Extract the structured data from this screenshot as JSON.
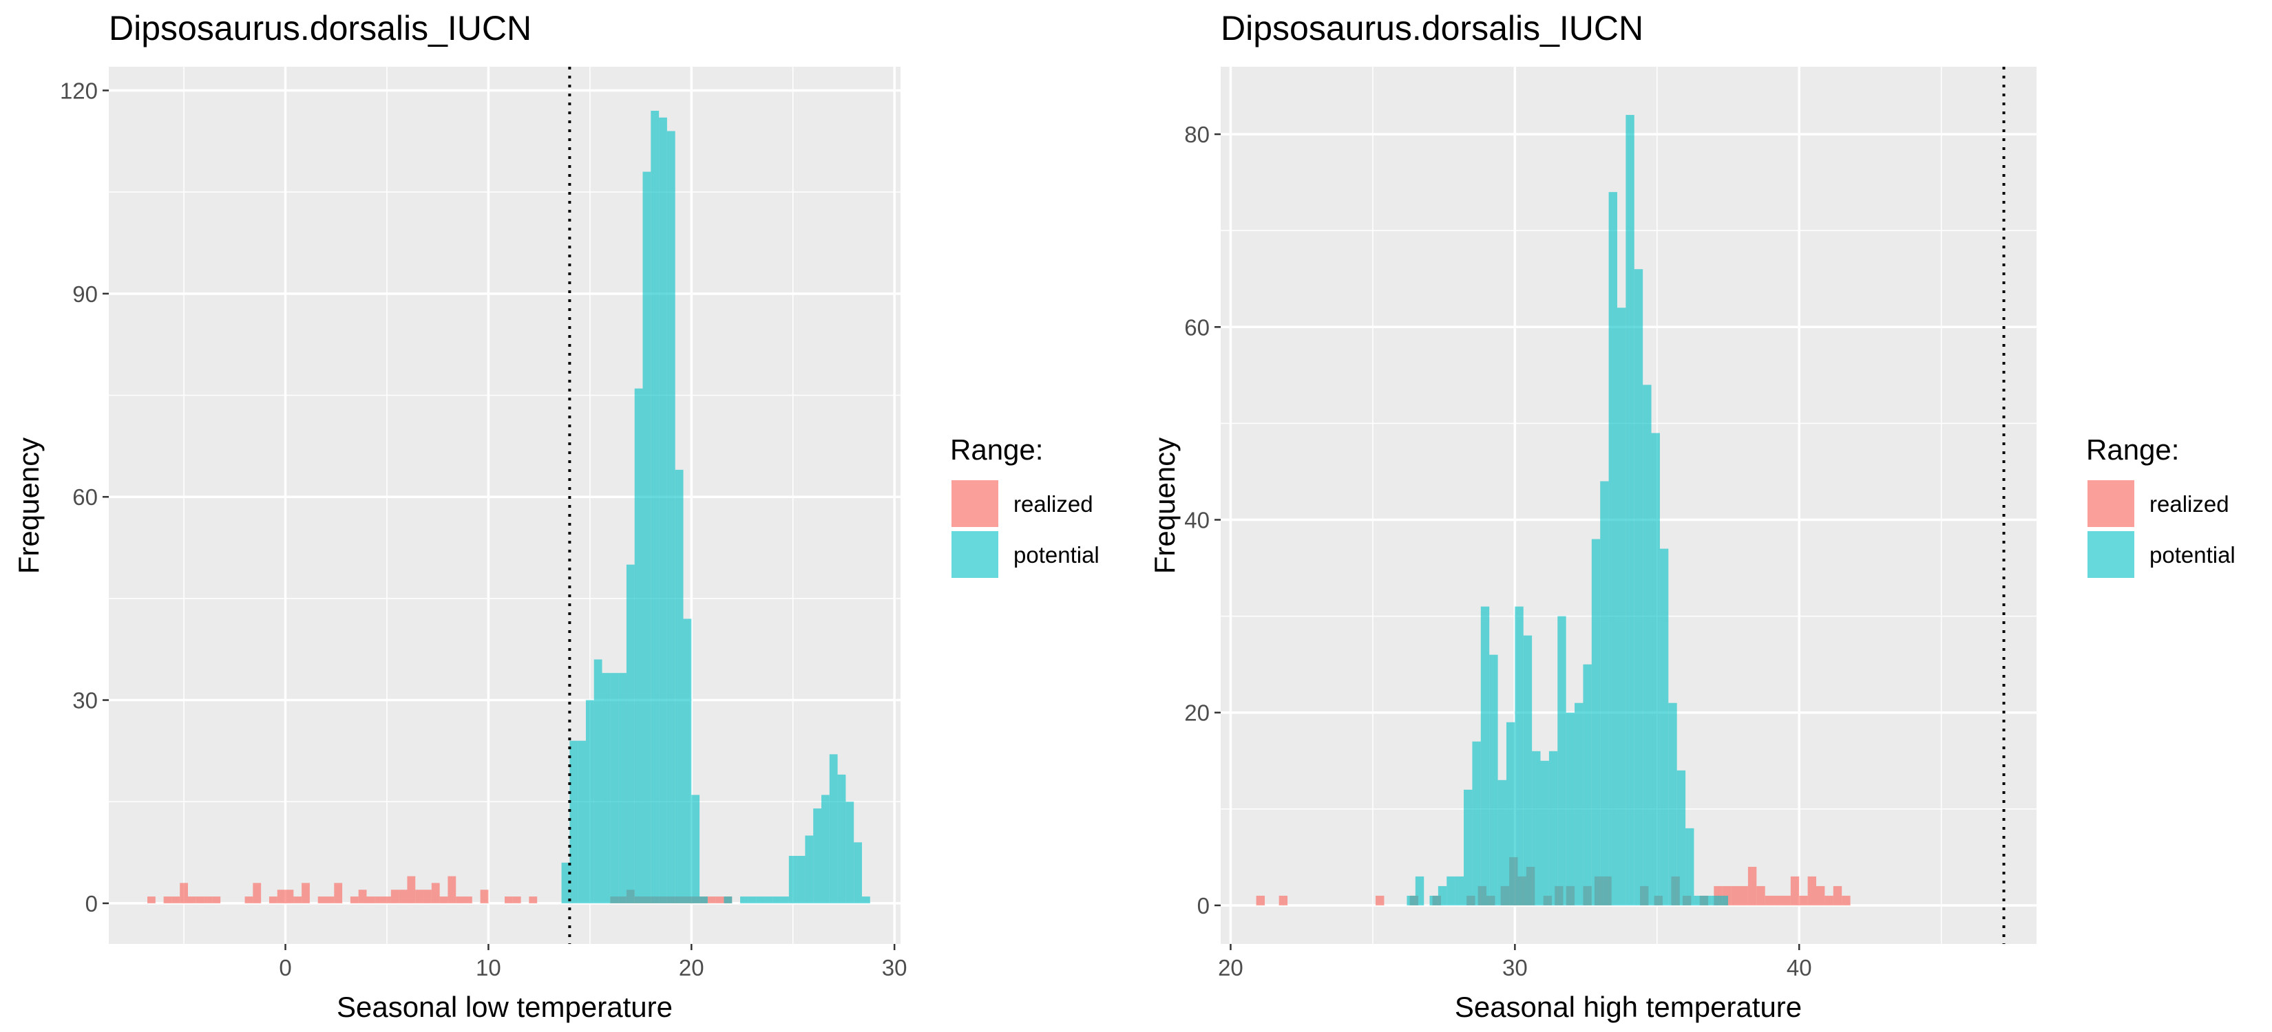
{
  "chart_data": [
    {
      "type": "bar",
      "title": "Dipsosaurus.dorsalis_IUCN",
      "xlabel": "Seasonal low temperature",
      "ylabel": "Frequency",
      "xlim": [
        -8.7,
        30.3
      ],
      "ylim": [
        -6,
        123.5
      ],
      "xticks": [
        0,
        10,
        20,
        30
      ],
      "yticks": [
        0,
        30,
        60,
        90,
        120
      ],
      "threshold": 14,
      "grid": true,
      "legend": {
        "title": "Range:",
        "placement": "right",
        "entries": [
          {
            "label": "realized",
            "color": "#F8766D"
          },
          {
            "label": "potential",
            "color": "#00BFC4"
          }
        ]
      },
      "series": [
        {
          "name": "realized",
          "color": "#F8766D",
          "bin_width": 0.4,
          "bins": [
            [
              -6.6,
              1
            ],
            [
              -5.8,
              1
            ],
            [
              -5.4,
              1
            ],
            [
              -5.0,
              3
            ],
            [
              -4.6,
              1
            ],
            [
              -4.2,
              1
            ],
            [
              -3.8,
              1
            ],
            [
              -3.4,
              1
            ],
            [
              -1.8,
              1
            ],
            [
              -1.4,
              3
            ],
            [
              -0.6,
              1
            ],
            [
              -0.2,
              2
            ],
            [
              0.2,
              2
            ],
            [
              0.6,
              1
            ],
            [
              1.0,
              3
            ],
            [
              1.8,
              1
            ],
            [
              2.2,
              1
            ],
            [
              2.6,
              3
            ],
            [
              3.4,
              1
            ],
            [
              3.8,
              2
            ],
            [
              4.2,
              1
            ],
            [
              4.6,
              1
            ],
            [
              5.0,
              1
            ],
            [
              5.4,
              2
            ],
            [
              5.8,
              2
            ],
            [
              6.2,
              4
            ],
            [
              6.6,
              2
            ],
            [
              7.0,
              2
            ],
            [
              7.4,
              3
            ],
            [
              7.8,
              1
            ],
            [
              8.2,
              4
            ],
            [
              8.6,
              1
            ],
            [
              9.0,
              1
            ],
            [
              9.8,
              2
            ],
            [
              11.0,
              1
            ],
            [
              11.4,
              1
            ],
            [
              12.2,
              1
            ],
            [
              16.2,
              1
            ],
            [
              16.6,
              1
            ],
            [
              17.0,
              2
            ],
            [
              17.4,
              1
            ],
            [
              17.8,
              1
            ],
            [
              18.2,
              1
            ],
            [
              18.6,
              1
            ],
            [
              19.0,
              1
            ],
            [
              19.4,
              1
            ],
            [
              19.8,
              1
            ],
            [
              20.2,
              1
            ],
            [
              20.6,
              1
            ],
            [
              21.0,
              1
            ],
            [
              21.4,
              1
            ],
            [
              21.8,
              1
            ]
          ]
        },
        {
          "name": "potential",
          "color": "#00BFC4",
          "bin_width": 0.4,
          "bins": [
            [
              13.8,
              6
            ],
            [
              14.2,
              24
            ],
            [
              14.6,
              24
            ],
            [
              15.0,
              30
            ],
            [
              15.4,
              36
            ],
            [
              15.8,
              34
            ],
            [
              16.2,
              34
            ],
            [
              16.6,
              34
            ],
            [
              17.0,
              50
            ],
            [
              17.4,
              76
            ],
            [
              17.8,
              108
            ],
            [
              18.2,
              117
            ],
            [
              18.6,
              116
            ],
            [
              19.0,
              114
            ],
            [
              19.4,
              64
            ],
            [
              19.8,
              42
            ],
            [
              20.2,
              16
            ],
            [
              20.6,
              1
            ],
            [
              21.8,
              1
            ],
            [
              22.6,
              1
            ],
            [
              23.0,
              1
            ],
            [
              23.4,
              1
            ],
            [
              23.8,
              1
            ],
            [
              24.2,
              1
            ],
            [
              24.6,
              1
            ],
            [
              25.0,
              7
            ],
            [
              25.4,
              7
            ],
            [
              25.8,
              10
            ],
            [
              26.2,
              14
            ],
            [
              26.6,
              16
            ],
            [
              27.0,
              22
            ],
            [
              27.4,
              19
            ],
            [
              27.8,
              15
            ],
            [
              28.2,
              9
            ],
            [
              28.6,
              1
            ]
          ]
        }
      ]
    },
    {
      "type": "bar",
      "title": "Dipsosaurus.dorsalis_IUCN",
      "xlabel": "Seasonal high temperature",
      "ylabel": "Frequency",
      "xlim": [
        19.65,
        48.35
      ],
      "ylim": [
        -4,
        87
      ],
      "xticks": [
        20,
        30,
        40
      ],
      "yticks": [
        0,
        20,
        40,
        60,
        80
      ],
      "threshold": 47.2,
      "grid": true,
      "legend": {
        "title": "Range:",
        "placement": "right",
        "entries": [
          {
            "label": "realized",
            "color": "#F8766D"
          },
          {
            "label": "potential",
            "color": "#00BFC4"
          }
        ]
      },
      "series": [
        {
          "name": "realized",
          "color": "#F8766D",
          "bin_width": 0.3,
          "bins": [
            [
              21.05,
              1
            ],
            [
              21.85,
              1
            ],
            [
              25.25,
              1
            ],
            [
              26.45,
              1
            ],
            [
              27.25,
              1
            ],
            [
              28.45,
              1
            ],
            [
              28.85,
              2
            ],
            [
              29.15,
              1
            ],
            [
              29.65,
              2
            ],
            [
              29.95,
              5
            ],
            [
              30.25,
              3
            ],
            [
              30.55,
              4
            ],
            [
              31.15,
              1
            ],
            [
              31.55,
              2
            ],
            [
              31.95,
              2
            ],
            [
              32.55,
              2
            ],
            [
              32.95,
              3
            ],
            [
              33.25,
              3
            ],
            [
              34.55,
              2
            ],
            [
              35.05,
              1
            ],
            [
              35.65,
              3
            ],
            [
              36.05,
              1
            ],
            [
              36.65,
              1
            ],
            [
              37.15,
              2
            ],
            [
              37.45,
              2
            ],
            [
              37.75,
              2
            ],
            [
              38.05,
              2
            ],
            [
              38.35,
              4
            ],
            [
              38.65,
              2
            ],
            [
              38.95,
              1
            ],
            [
              39.25,
              1
            ],
            [
              39.55,
              1
            ],
            [
              39.85,
              3
            ],
            [
              40.15,
              1
            ],
            [
              40.45,
              3
            ],
            [
              40.75,
              2
            ],
            [
              41.05,
              1
            ],
            [
              41.35,
              2
            ],
            [
              41.65,
              1
            ]
          ]
        },
        {
          "name": "potential",
          "color": "#00BFC4",
          "bin_width": 0.3,
          "bins": [
            [
              26.35,
              1
            ],
            [
              26.65,
              3
            ],
            [
              27.15,
              1
            ],
            [
              27.45,
              2
            ],
            [
              27.75,
              3
            ],
            [
              28.05,
              3
            ],
            [
              28.35,
              12
            ],
            [
              28.65,
              17
            ],
            [
              28.95,
              31
            ],
            [
              29.25,
              26
            ],
            [
              29.55,
              13
            ],
            [
              29.85,
              19
            ],
            [
              30.15,
              31
            ],
            [
              30.45,
              28
            ],
            [
              30.75,
              16
            ],
            [
              31.05,
              15
            ],
            [
              31.35,
              16
            ],
            [
              31.65,
              30
            ],
            [
              31.95,
              20
            ],
            [
              32.25,
              21
            ],
            [
              32.55,
              25
            ],
            [
              32.85,
              38
            ],
            [
              33.15,
              44
            ],
            [
              33.45,
              74
            ],
            [
              33.75,
              62
            ],
            [
              34.05,
              82
            ],
            [
              34.35,
              66
            ],
            [
              34.65,
              54
            ],
            [
              34.95,
              49
            ],
            [
              35.25,
              37
            ],
            [
              35.55,
              21
            ],
            [
              35.85,
              14
            ],
            [
              36.15,
              8
            ],
            [
              36.45,
              1
            ],
            [
              36.75,
              1
            ],
            [
              37.05,
              1
            ],
            [
              37.35,
              1
            ]
          ]
        }
      ]
    }
  ]
}
